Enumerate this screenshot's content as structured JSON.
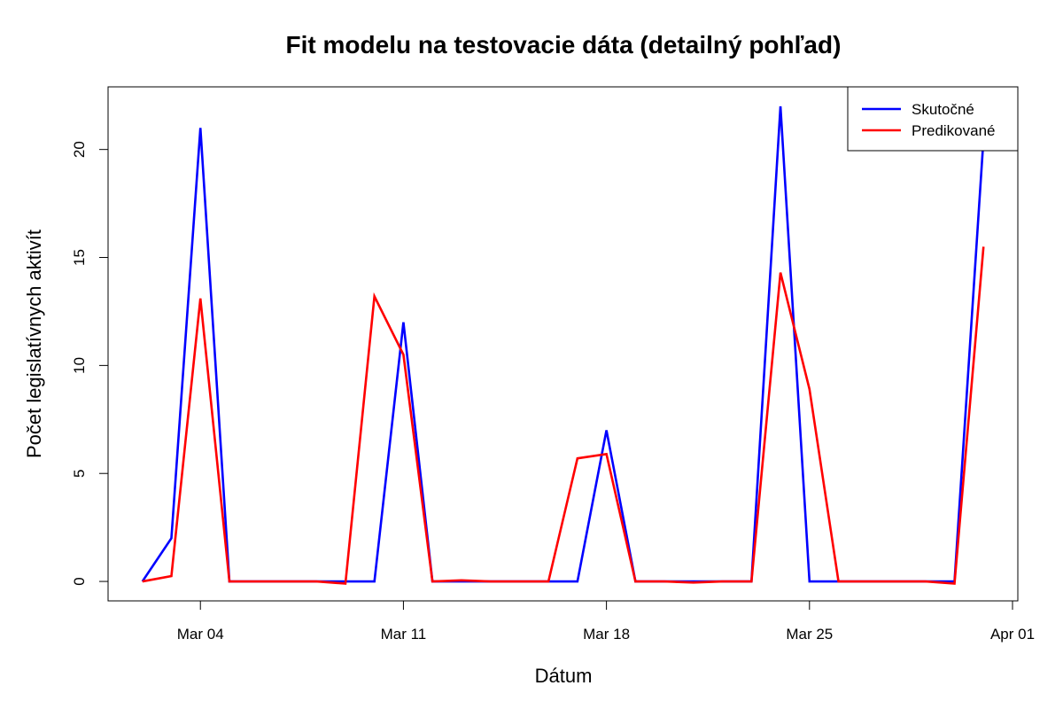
{
  "chart_data": {
    "type": "line",
    "title": "Fit modelu na testovacie dáta (detailný pohľad)",
    "xlabel": "Dátum",
    "ylabel": "Počet legislatívnych aktivít",
    "x": [
      "Mar 02",
      "Mar 03",
      "Mar 04",
      "Mar 05",
      "Mar 06",
      "Mar 07",
      "Mar 08",
      "Mar 09",
      "Mar 10",
      "Mar 11",
      "Mar 12",
      "Mar 13",
      "Mar 14",
      "Mar 15",
      "Mar 16",
      "Mar 17",
      "Mar 18",
      "Mar 19",
      "Mar 20",
      "Mar 21",
      "Mar 22",
      "Mar 23",
      "Mar 24",
      "Mar 25",
      "Mar 26",
      "Mar 27",
      "Mar 28",
      "Mar 29",
      "Mar 30",
      "Mar 31"
    ],
    "x_ticks": [
      "Mar 04",
      "Mar 11",
      "Mar 18",
      "Mar 25",
      "Apr 01"
    ],
    "y_ticks": [
      0,
      5,
      10,
      15,
      20
    ],
    "xlim": [
      "Mar 01",
      "Apr 01"
    ],
    "ylim": [
      -0.9,
      22.9
    ],
    "grid": false,
    "legend_position": "top-right",
    "series": [
      {
        "name": "Skutočné",
        "color": "#0000ff",
        "values": [
          0,
          2,
          21,
          0,
          0,
          0,
          0,
          0,
          0,
          12,
          0,
          0,
          0,
          0,
          0,
          0,
          7,
          0,
          0,
          0,
          0,
          0,
          22,
          0,
          0,
          0,
          0,
          0,
          0,
          20.5
        ]
      },
      {
        "name": "Predikované",
        "color": "#ff0000",
        "values": [
          0,
          0.25,
          13.1,
          0,
          0,
          0,
          0,
          -0.1,
          13.2,
          10.5,
          0,
          0.05,
          0,
          0,
          0,
          5.7,
          5.9,
          0,
          0,
          -0.05,
          0,
          0,
          14.3,
          8.9,
          0,
          0,
          0,
          0,
          -0.1,
          15.5
        ]
      }
    ]
  }
}
